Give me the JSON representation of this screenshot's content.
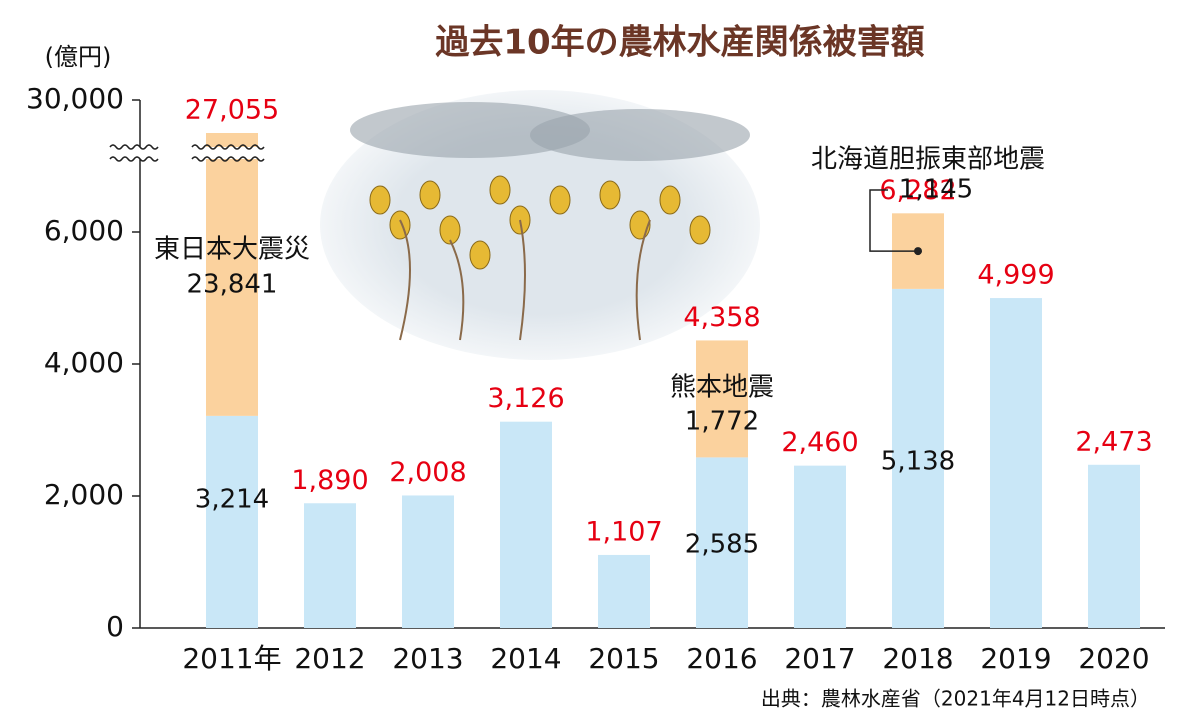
{
  "chart_data": {
    "type": "stacked-bar",
    "title": "過去10年の農林水産関係被害額",
    "y_unit": "(億円)",
    "source": "出典：農林水産省（2021年4月12日時点）",
    "categories": [
      "2011年",
      "2012",
      "2013",
      "2014",
      "2015",
      "2016",
      "2017",
      "2018",
      "2019",
      "2020"
    ],
    "series": [
      {
        "color": "#c9e7f7",
        "values": [
          3214,
          1890,
          2008,
          3126,
          1107,
          2585,
          2460,
          5138,
          4999,
          2473
        ],
        "value_labels": [
          "3,214",
          null,
          null,
          null,
          null,
          "2,585",
          null,
          "5,138",
          null,
          null
        ]
      },
      {
        "color": "#fbd29e",
        "values": [
          23841,
          null,
          null,
          null,
          null,
          1772,
          null,
          1145,
          null,
          null
        ],
        "value_labels": [
          "23,841",
          null,
          null,
          null,
          null,
          "1,772",
          null,
          "1,145",
          null,
          null
        ],
        "annotations": [
          "東日本大震災",
          null,
          null,
          null,
          null,
          "熊本地震",
          null,
          "北海道胆振東部地震",
          null,
          null
        ]
      }
    ],
    "totals": [
      27055,
      1890,
      2008,
      3126,
      1107,
      4358,
      2460,
      6282,
      4999,
      2473
    ],
    "total_labels": [
      "27,055",
      "1,890",
      "2,008",
      "3,126",
      "1,107",
      "4,358",
      "2,460",
      "6,282",
      "4,999",
      "2,473"
    ],
    "total_color": "#e60012",
    "ylim": [
      0,
      30000
    ],
    "axis_break": [
      7500,
      29500
    ],
    "yticks": [
      0,
      {
        "value": 2000,
        "label": "2,000"
      },
      {
        "value": 4000,
        "label": "4,000"
      },
      {
        "value": 6000,
        "label": "6,000"
      },
      {
        "value": 30000,
        "label": "30,000"
      }
    ],
    "grid": false
  }
}
